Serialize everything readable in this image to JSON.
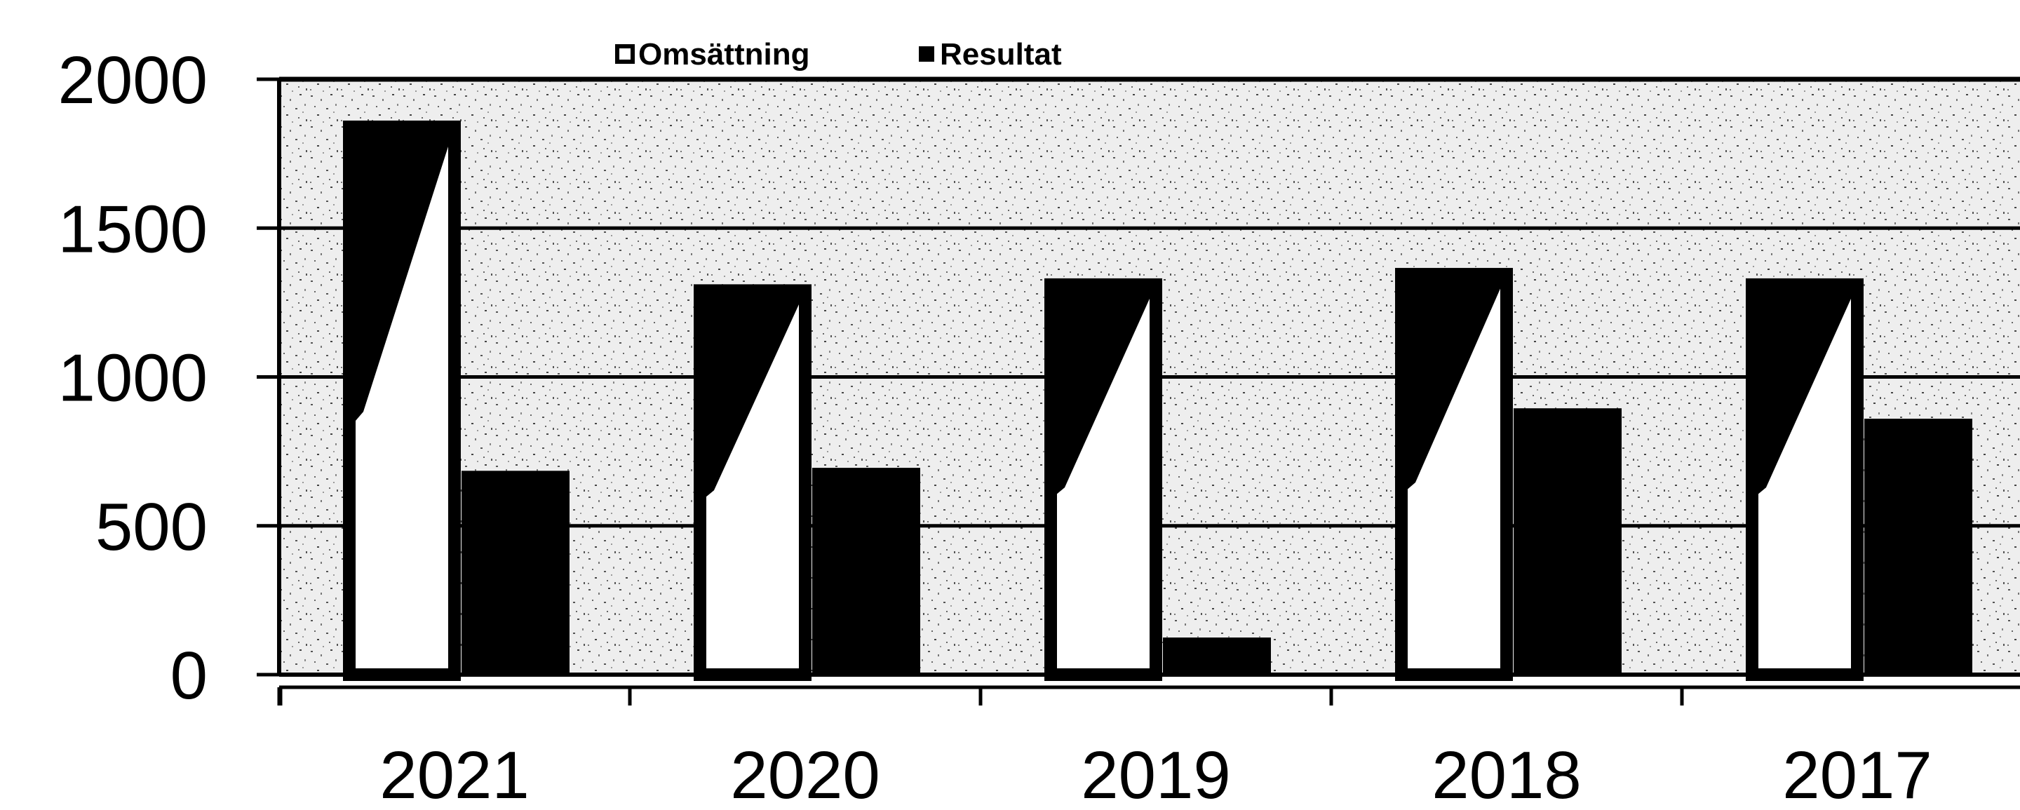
{
  "chart_data": {
    "type": "bar",
    "categories": [
      "2021",
      "2020",
      "2019",
      "2018",
      "2017"
    ],
    "series": [
      {
        "name": "Omsättning",
        "values": [
          1840,
          1290,
          1310,
          1345,
          1310
        ],
        "fill": "#ffffff",
        "stroke": "#000000"
      },
      {
        "name": "Resultat",
        "values": [
          680,
          690,
          120,
          890,
          855
        ],
        "fill": "#000000",
        "stroke": "#000000"
      }
    ],
    "ylim": [
      0,
      2000
    ],
    "yticks": [
      "0",
      "500",
      "1000",
      "1500",
      "2000"
    ],
    "grid": true,
    "legend_position": "top",
    "plot_background": "speckled gray",
    "title": "",
    "xlabel": "",
    "ylabel": ""
  }
}
